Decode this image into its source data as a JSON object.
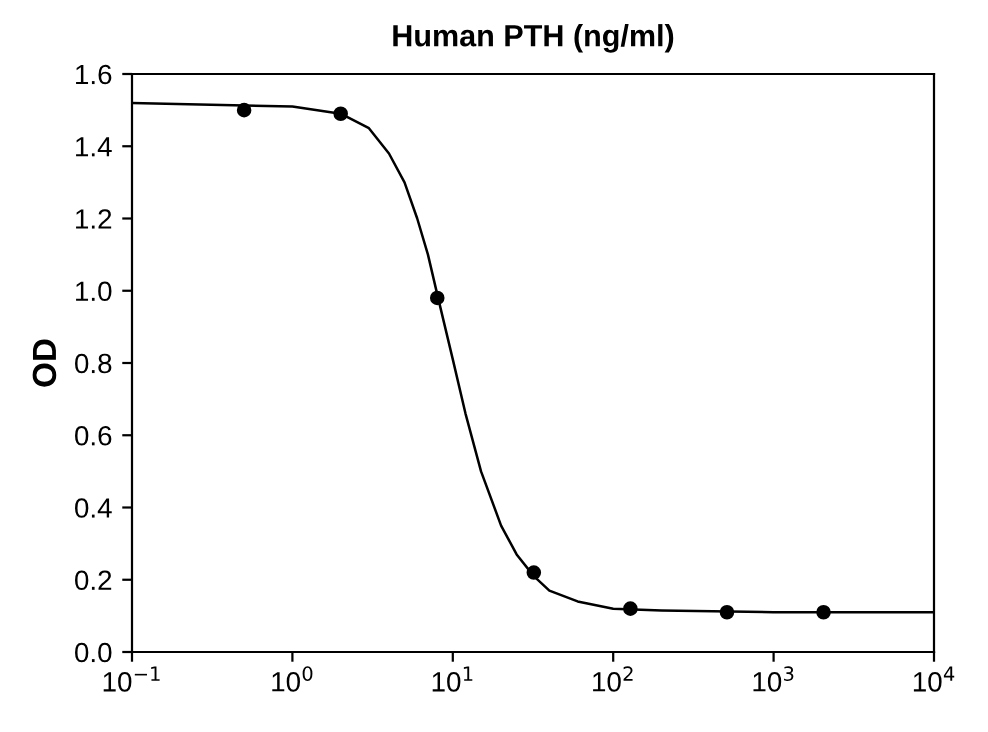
{
  "chart_data": {
    "type": "scatter",
    "title": "Human PTH (ng/ml)",
    "ylabel": "OD",
    "log": "x",
    "xlim": [
      0.1,
      10000
    ],
    "xticks": [
      {
        "value": 0.1,
        "label": "10$^{−1}$"
      },
      {
        "value": 1,
        "label": "10$^{0}$"
      },
      {
        "value": 10,
        "label": "10$^{1}$"
      },
      {
        "value": 100,
        "label": "10$^{2}$"
      },
      {
        "value": 1000,
        "label": "10$^{3}$"
      },
      {
        "value": 10000,
        "label": "10$^{4}$"
      }
    ],
    "ylim": [
      0,
      1.6
    ],
    "yticks": [
      {
        "value": 0,
        "label": "0.0"
      },
      {
        "value": 0.2,
        "label": "0.2"
      },
      {
        "value": 0.4,
        "label": "0.4"
      },
      {
        "value": 0.6,
        "label": "0.6"
      },
      {
        "value": 0.8,
        "label": "0.8"
      },
      {
        "value": 1.0,
        "label": "1.0"
      },
      {
        "value": 1.2,
        "label": "1.2"
      },
      {
        "value": 1.4,
        "label": "1.4"
      },
      {
        "value": 1.6,
        "label": "1.6"
      }
    ],
    "grid": false,
    "legend": false,
    "series": [
      {
        "color": "#000000",
        "marker": "circle",
        "x": [
          0.5,
          2,
          8,
          32,
          128,
          512,
          2048
        ],
        "values": [
          1.5,
          1.49,
          0.98,
          0.22,
          0.12,
          0.11,
          0.11
        ]
      },
      {
        "type": "line",
        "color": "#000000",
        "marker": "none",
        "line_style": "solid",
        "x": [
          0.1,
          1,
          2,
          3,
          4,
          5,
          6,
          7,
          8,
          10,
          12,
          15,
          20,
          25,
          32,
          40,
          60,
          100,
          200,
          1000,
          10000
        ],
        "values": [
          1.52,
          1.51,
          1.49,
          1.45,
          1.38,
          1.3,
          1.2,
          1.1,
          0.99,
          0.81,
          0.66,
          0.5,
          0.35,
          0.27,
          0.21,
          0.17,
          0.14,
          0.12,
          0.115,
          0.11,
          0.11
        ]
      }
    ]
  }
}
